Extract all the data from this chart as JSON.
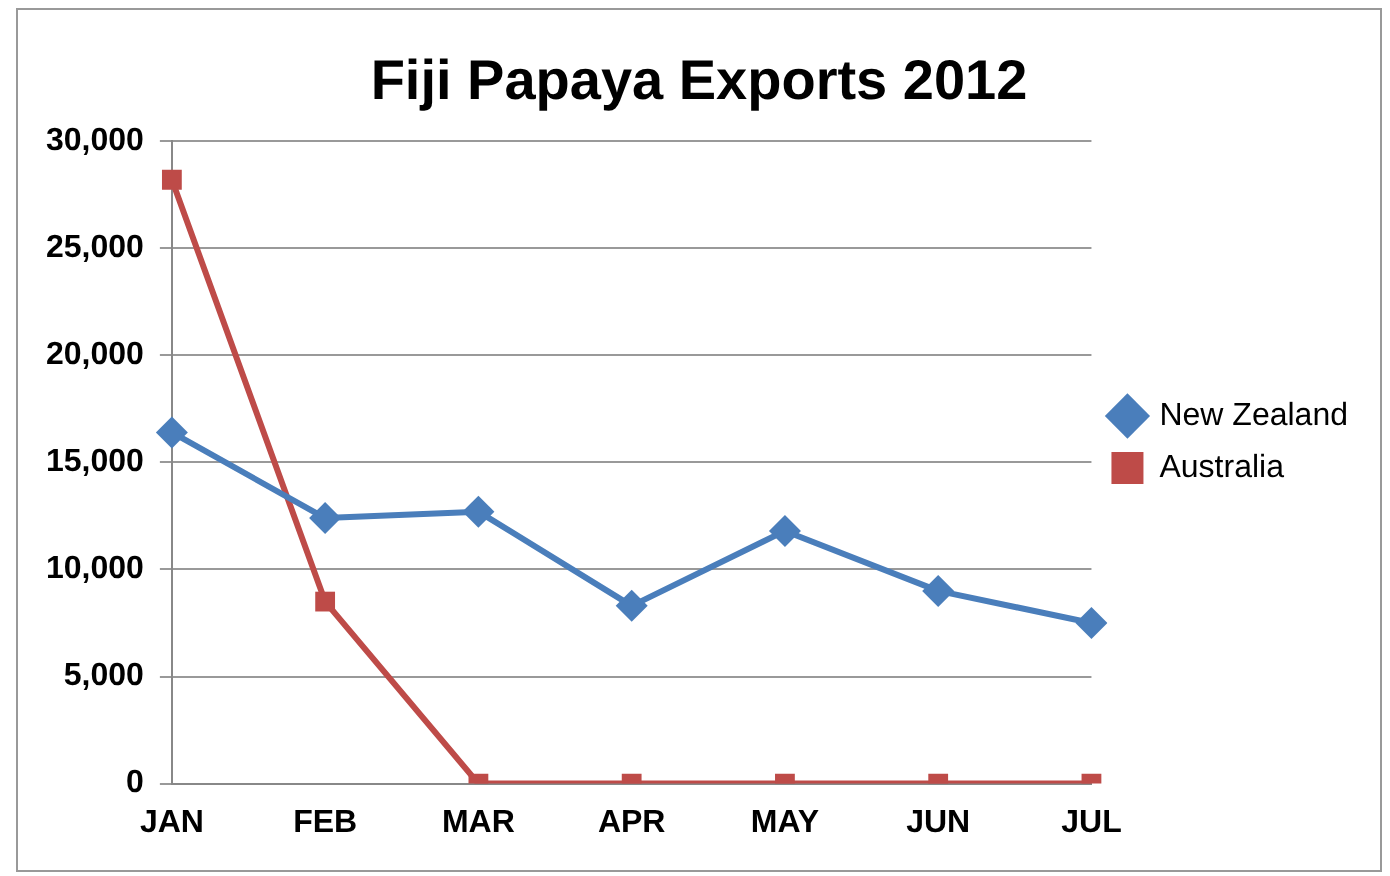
{
  "chart_data": {
    "type": "line",
    "title": "Fiji Papaya Exports 2012",
    "categories": [
      "JAN",
      "FEB",
      "MAR",
      "APR",
      "MAY",
      "JUN",
      "JUL"
    ],
    "series": [
      {
        "name": "New Zealand",
        "color": "#4a7ebb",
        "values": [
          16400,
          12400,
          12700,
          8300,
          11800,
          9000,
          7500
        ],
        "marker": "diamond"
      },
      {
        "name": "Australia",
        "color": "#be4b48",
        "values": [
          28200,
          8500,
          0,
          0,
          0,
          0,
          0
        ],
        "marker": "square"
      }
    ],
    "ylim": [
      0,
      30000
    ],
    "yticks": [
      {
        "value": 0,
        "label": "0"
      },
      {
        "value": 5000,
        "label": "5,000"
      },
      {
        "value": 10000,
        "label": "10,000"
      },
      {
        "value": 15000,
        "label": "15,000"
      },
      {
        "value": 20000,
        "label": "20,000"
      },
      {
        "value": 25000,
        "label": "25,000"
      },
      {
        "value": 30000,
        "label": "30,000"
      }
    ],
    "grid": "y",
    "legend": "right",
    "line_style": "solid"
  }
}
